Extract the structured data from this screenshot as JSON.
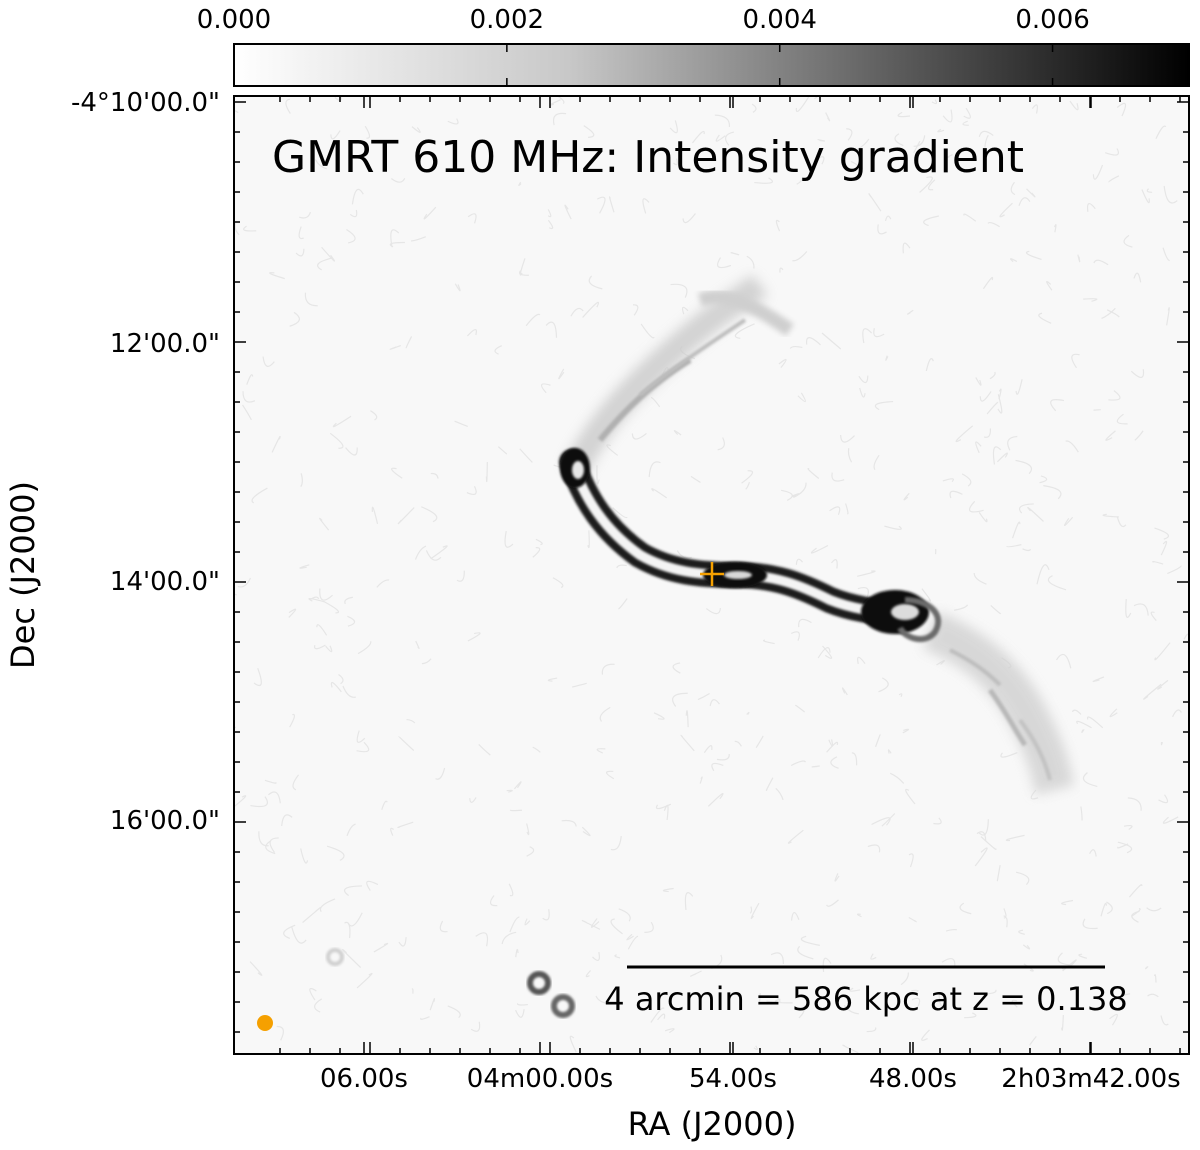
{
  "image": {
    "title": "GMRT 610 MHz: Intensity gradient",
    "colorbar": {
      "range": [
        0.0,
        0.007
      ],
      "ticks": [
        "0.000",
        "0.002",
        "0.004",
        "0.006"
      ],
      "tick_values": [
        0.0,
        0.002,
        0.004,
        0.006
      ]
    },
    "axes": {
      "xlabel": "RA (J2000)",
      "ylabel": "Dec (J2000)",
      "x_ticks": [
        "06.00s",
        "04m00.00s",
        "54.00s",
        "48.00s",
        "2h03m42.00s"
      ],
      "y_ticks": [
        "-4°10'00.0\"",
        "12'00.0\"",
        "14'00.0\"",
        "16'00.0\""
      ]
    },
    "scale_bar": {
      "label": "4 arcmin = 586 kpc at z = 0.138"
    },
    "markers": {
      "core_cross_color": "#f5a000",
      "beam_color": "#f5a000"
    }
  }
}
